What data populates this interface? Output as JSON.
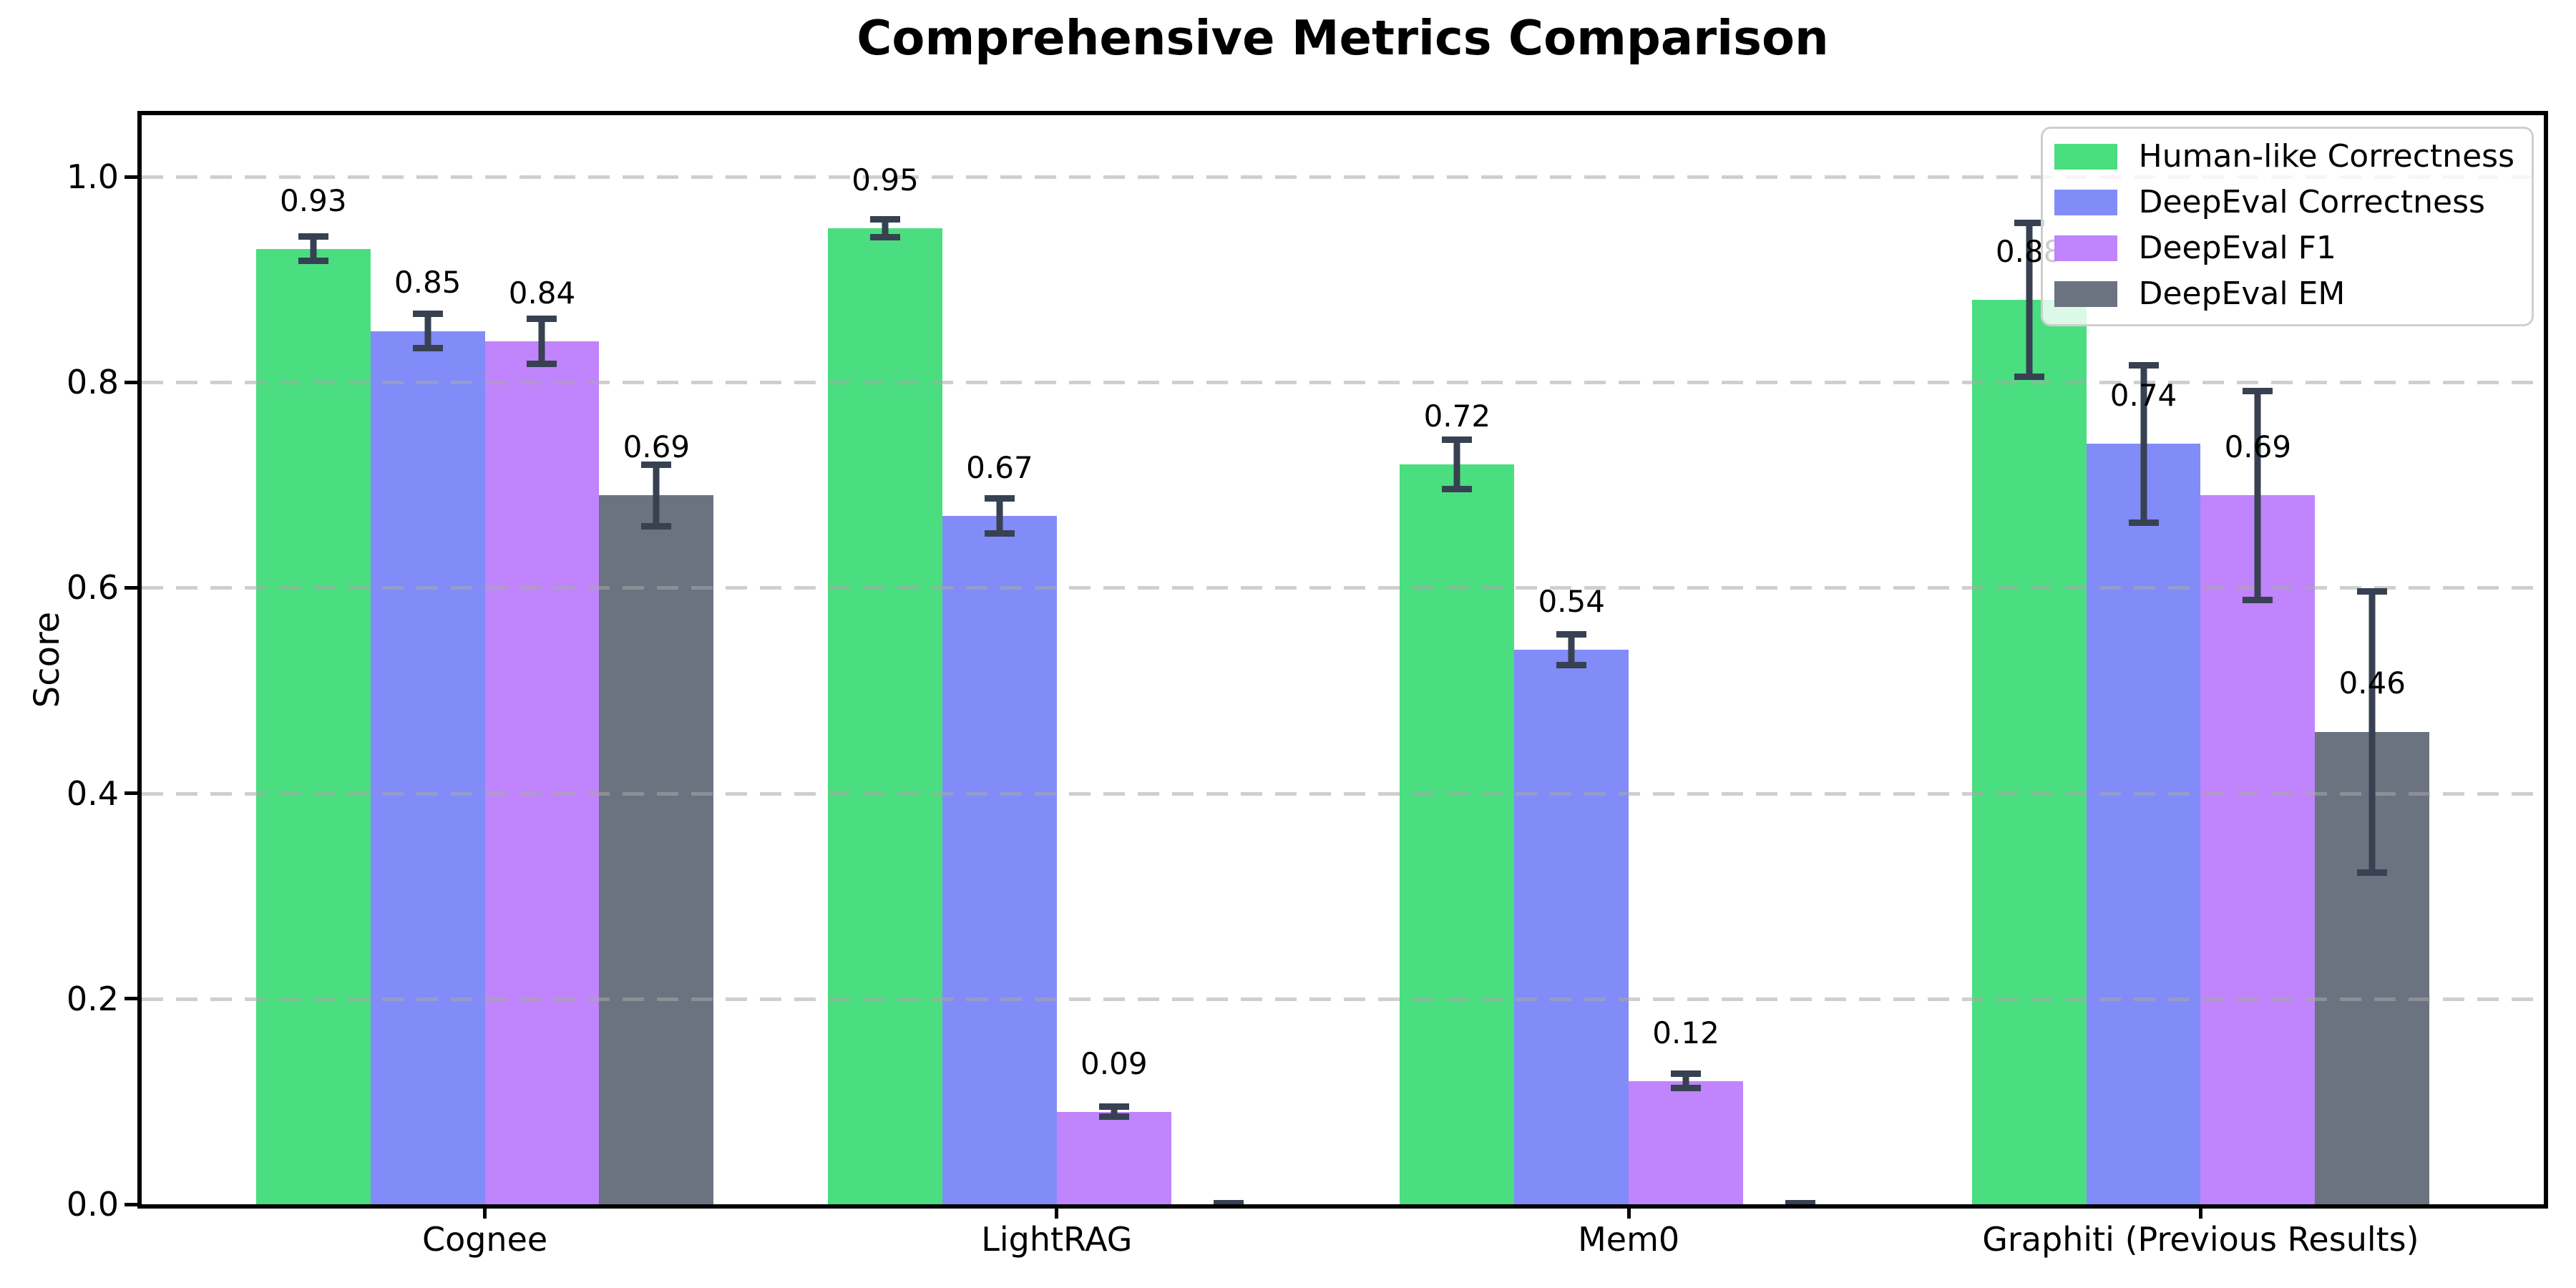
{
  "chart_data": {
    "type": "bar",
    "title": "Comprehensive Metrics Comparison",
    "ylabel": "Score",
    "xlabel": "",
    "categories": [
      "Cognee",
      "LightRAG",
      "Mem0",
      "Graphiti (Previous Results)"
    ],
    "series": [
      {
        "name": "Human-like Correctness",
        "color": "#4ade80",
        "values": [
          0.93,
          0.95,
          0.72,
          0.88
        ],
        "errors": [
          0.015,
          0.012,
          0.027,
          0.078
        ],
        "labels": [
          "0.93",
          "0.95",
          "0.72",
          "0.88"
        ]
      },
      {
        "name": "DeepEval Correctness",
        "color": "#818cf8",
        "values": [
          0.85,
          0.67,
          0.54,
          0.74
        ],
        "errors": [
          0.02,
          0.02,
          0.018,
          0.08
        ],
        "labels": [
          "0.85",
          "0.67",
          "0.54",
          "0.74"
        ]
      },
      {
        "name": "DeepEval F1",
        "color": "#c084fc",
        "values": [
          0.84,
          0.09,
          0.12,
          0.69
        ],
        "errors": [
          0.025,
          0.008,
          0.01,
          0.105
        ],
        "labels": [
          "0.84",
          "0.09",
          "0.12",
          "0.69"
        ]
      },
      {
        "name": "DeepEval EM",
        "color": "#6b7280",
        "values": [
          0.69,
          0.0,
          0.0,
          0.46
        ],
        "errors": [
          0.033,
          0.004,
          0.004,
          0.14
        ],
        "labels": [
          "0.69",
          "",
          "",
          "0.46"
        ]
      }
    ],
    "ytick_labels": [
      "0.0",
      "0.2",
      "0.4",
      "0.6",
      "0.8",
      "1.0"
    ],
    "ytick_values": [
      0.0,
      0.2,
      0.4,
      0.6,
      0.8,
      1.0
    ],
    "ylim": [
      0,
      1.06
    ],
    "xlim": [
      -0.6,
      3.6
    ],
    "bar_width": 0.2,
    "grid": {
      "axis": "y",
      "style": "dashed",
      "above_bars": true
    },
    "legend": {
      "position": "upper right"
    },
    "colors": {
      "errorbar": "#374151",
      "spine": "#000000",
      "background": "#ffffff",
      "legend_border": "#cfcfcf"
    }
  }
}
